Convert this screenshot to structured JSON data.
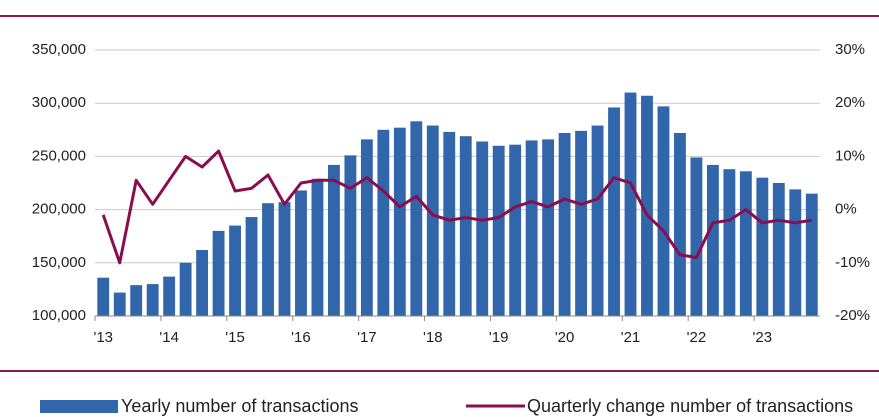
{
  "chart_data": {
    "type": "bar",
    "categories": [
      "'13",
      null,
      null,
      null,
      "'14",
      null,
      null,
      null,
      "'15",
      null,
      null,
      null,
      "'16",
      null,
      null,
      null,
      "'17",
      null,
      null,
      null,
      "'18",
      null,
      null,
      null,
      "'19",
      null,
      null,
      null,
      "'20",
      null,
      null,
      null,
      "'21",
      null,
      null,
      null,
      "'22",
      null,
      null,
      null,
      "'23",
      null,
      null,
      null
    ],
    "series": [
      {
        "name": "Yearly number of transactions",
        "type": "bar",
        "color": "#3266aa",
        "values": [
          136000,
          122000,
          129000,
          130000,
          137000,
          150000,
          162000,
          180000,
          185000,
          193000,
          206000,
          207000,
          218000,
          229000,
          242000,
          251000,
          266000,
          275000,
          277000,
          283000,
          279000,
          273000,
          269000,
          264000,
          260000,
          261000,
          265000,
          266000,
          272000,
          274000,
          279000,
          296000,
          310000,
          307000,
          297000,
          272000,
          249000,
          242000,
          238000,
          236000,
          230000,
          225000,
          219000,
          215000
        ]
      },
      {
        "name": "Quarterly change number of transactions",
        "type": "line",
        "axis": "y2",
        "color": "#8a0d4f",
        "values": [
          -1,
          -10,
          5.5,
          1,
          5.5,
          10,
          8,
          11,
          3.5,
          4,
          6.5,
          1,
          5,
          5.5,
          5.5,
          4,
          6,
          3.5,
          0.5,
          2.5,
          -1,
          -2,
          -1.5,
          -2,
          -1.5,
          0.5,
          1.5,
          0.5,
          2,
          1,
          2,
          6,
          5,
          -1,
          -4,
          -8.5,
          -9,
          -2.5,
          -2,
          0,
          -2.5,
          -2,
          -2.5,
          -2
        ]
      }
    ],
    "ylim": [
      100000,
      350000
    ],
    "yticks": [
      {
        "value": 100000,
        "label": "100,000"
      },
      {
        "value": 150000,
        "label": "150,000"
      },
      {
        "value": 200000,
        "label": "200,000"
      },
      {
        "value": 250000,
        "label": "250,000"
      },
      {
        "value": 300000,
        "label": "300,000"
      },
      {
        "value": 350000,
        "label": "350,000"
      }
    ],
    "y2lim": [
      -20,
      30
    ],
    "y2ticks": [
      {
        "value": -20,
        "label": "-20%"
      },
      {
        "value": -10,
        "label": "-10%"
      },
      {
        "value": 0,
        "label": "0%"
      },
      {
        "value": 10,
        "label": "10%"
      },
      {
        "value": 20,
        "label": "20%"
      },
      {
        "value": 30,
        "label": "30%"
      }
    ],
    "grid": true,
    "legend": "bottom"
  }
}
